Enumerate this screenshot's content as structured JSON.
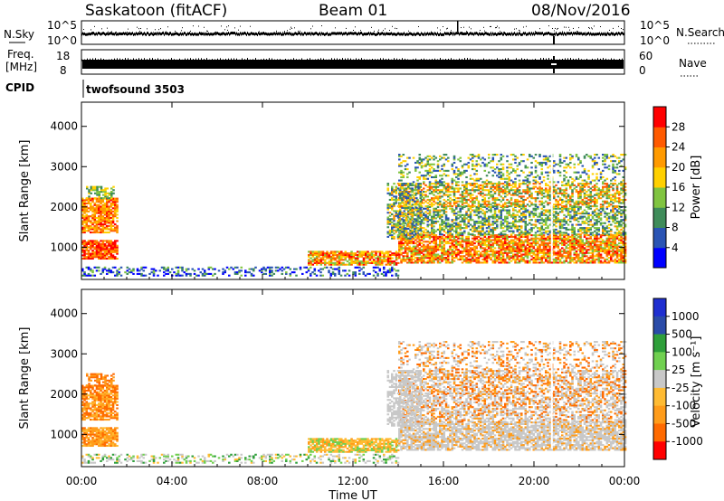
{
  "header": {
    "station": "Saskatoon (fitACF)",
    "beam": "Beam 01",
    "date": "08/Nov/2016"
  },
  "strips": {
    "nsky_label": "N.Sky",
    "nsky_ticks": [
      "10^5",
      "10^0"
    ],
    "freq_label_1": "Freq.",
    "freq_label_2": "[MHz]",
    "freq_ticks": [
      "18",
      "8"
    ],
    "cpid_label": "CPID",
    "cpid_text": "twofsound 3503",
    "nsearch_label": "N.Search",
    "nsearch_ticks": [
      "10^5",
      "10^0"
    ],
    "nave_label": "Nave",
    "nave_ticks": [
      "60",
      "0"
    ]
  },
  "colors": {
    "power": [
      "#0000ff",
      "#2a54b4",
      "#3f8c5a",
      "#80c440",
      "#ffd000",
      "#ff9a00",
      "#ff5a00",
      "#ff0000"
    ],
    "velocity": [
      "#ff0000",
      "#ff6a00",
      "#ff9c1a",
      "#ffbb33",
      "#c8c8c8",
      "#70d050",
      "#2e9f3a",
      "#2a4ba8",
      "#1f2fd0"
    ],
    "gray": "#c8c8c8"
  },
  "chart_data": [
    {
      "type": "heatmap",
      "name_panel": "power",
      "ylabel": "Slant Range [km]",
      "yticks": [
        "1000",
        "2000",
        "3000",
        "4000"
      ],
      "ylim": [
        200,
        4600
      ],
      "xlim": [
        0,
        24
      ],
      "colorbar_label": "Power [dB]",
      "colorbar_ticks": [
        "4",
        "8",
        "12",
        "16",
        "20",
        "24",
        "28"
      ],
      "colorbar_range": [
        0,
        32
      ]
    },
    {
      "type": "heatmap",
      "name_panel": "velocity",
      "ylabel": "Slant Range [km]",
      "yticks": [
        "1000",
        "2000",
        "3000",
        "4000"
      ],
      "ylim": [
        200,
        4600
      ],
      "xlim": [
        0,
        24
      ],
      "colorbar_label": "Velocity [m s⁻¹]",
      "colorbar_ticks": [
        "1000",
        "500",
        "100",
        "25",
        "-25",
        "-100",
        "-500",
        "-1000"
      ]
    }
  ],
  "xaxis": {
    "ticks": [
      "00:00",
      "04:00",
      "08:00",
      "12:00",
      "16:00",
      "20:00",
      "00:00"
    ],
    "label": "Time UT"
  }
}
